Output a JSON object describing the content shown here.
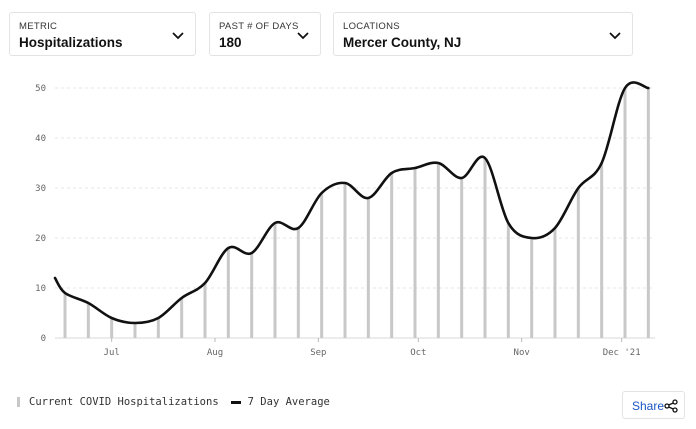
{
  "filters": {
    "metric": {
      "label": "METRIC",
      "value": "Hospitalizations",
      "icon": "chevron-down-icon"
    },
    "days": {
      "label": "PAST # OF DAYS",
      "value": "180",
      "icon": "chevron-down-icon"
    },
    "location": {
      "label": "LOCATIONS",
      "value": "Mercer County, NJ",
      "icon": "chevron-down-icon"
    }
  },
  "legend": {
    "bars_label": "Current COVID Hospitalizations",
    "line_label": "7 Day Average"
  },
  "share": {
    "label": "Share",
    "icon": "share-icon",
    "color": "#1a56c4"
  },
  "chart_data": {
    "type": "bar",
    "grid": true,
    "ylim": [
      0,
      50
    ],
    "yticks": [
      0,
      10,
      20,
      30,
      40,
      50
    ],
    "xticks": [
      "Jul",
      "Aug",
      "Sep",
      "Oct",
      "Nov",
      "Dec '21"
    ],
    "x_range_days": [
      0,
      180
    ],
    "bar_color": "#c8c8c8",
    "line_color": "#111111",
    "series": [
      {
        "name": "Current COVID Hospitalizations",
        "kind": "bar",
        "day": [
          3,
          10,
          17,
          24,
          31,
          38,
          45,
          52,
          59,
          66,
          73,
          80,
          87,
          94,
          101,
          108,
          115,
          122,
          129,
          136,
          143,
          150,
          157,
          164,
          171,
          178
        ],
        "values": [
          9,
          7,
          4,
          3,
          4,
          8,
          11,
          18,
          17,
          23,
          22,
          29,
          31,
          28,
          33,
          34,
          35,
          32,
          36,
          23,
          20,
          22,
          30,
          35,
          50,
          50
        ]
      },
      {
        "name": "7 Day Average",
        "kind": "line",
        "day": [
          0,
          3,
          10,
          17,
          24,
          31,
          38,
          45,
          52,
          59,
          66,
          73,
          80,
          87,
          94,
          101,
          108,
          115,
          122,
          129,
          136,
          143,
          150,
          157,
          164,
          171,
          178
        ],
        "values": [
          12,
          9,
          7,
          4,
          3,
          4,
          8,
          11,
          18,
          17,
          23,
          22,
          29,
          31,
          28,
          33,
          34,
          35,
          32,
          36,
          23,
          20,
          22,
          30,
          35,
          50,
          50
        ]
      }
    ]
  }
}
